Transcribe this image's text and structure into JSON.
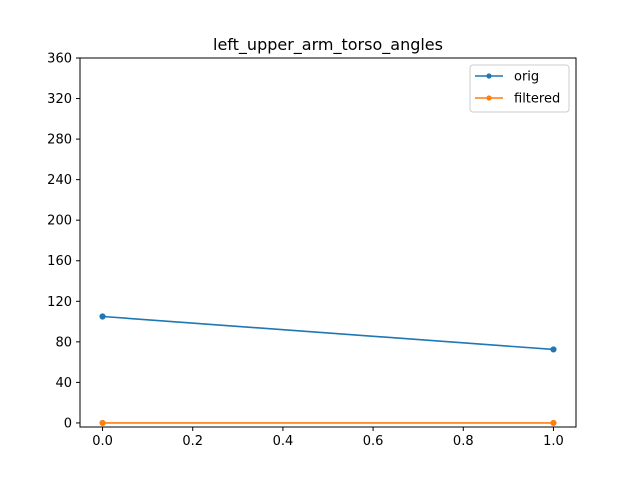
{
  "chart_data": {
    "type": "line",
    "title": "left_upper_arm_torso_angles",
    "xlabel": "",
    "ylabel": "",
    "xlim": [
      -0.05,
      1.05
    ],
    "ylim": [
      -4,
      360
    ],
    "xticks": [
      0.0,
      0.2,
      0.4,
      0.6,
      0.8,
      1.0
    ],
    "xtick_labels": [
      "0.0",
      "0.2",
      "0.4",
      "0.6",
      "0.8",
      "1.0"
    ],
    "yticks": [
      0,
      40,
      80,
      120,
      160,
      200,
      240,
      280,
      320,
      360
    ],
    "ytick_labels": [
      "0",
      "40",
      "80",
      "120",
      "160",
      "200",
      "240",
      "280",
      "320",
      "360"
    ],
    "grid": false,
    "legend_position": "top-right",
    "series": [
      {
        "name": "orig",
        "color": "#1f77b4",
        "marker": "dot",
        "x": [
          0,
          1
        ],
        "y": [
          105,
          72.5
        ]
      },
      {
        "name": "filtered",
        "color": "#ff7f0e",
        "marker": "dot",
        "x": [
          0,
          1
        ],
        "y": [
          0,
          0
        ]
      }
    ]
  }
}
